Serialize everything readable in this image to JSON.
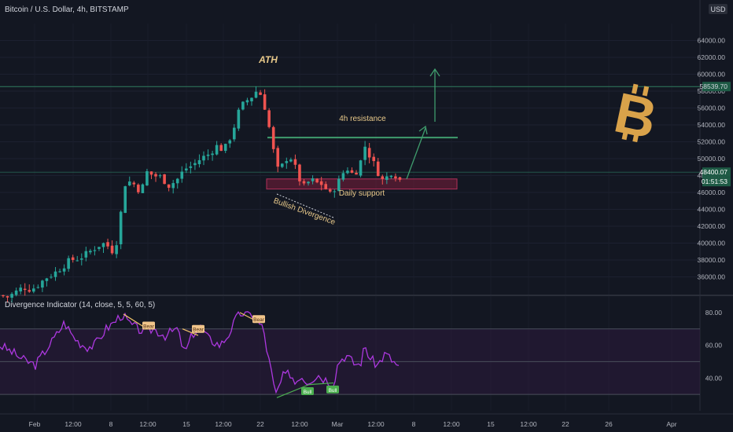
{
  "header": {
    "title": "Bitcoin / U.S. Dollar, 4h, BITSTAMP",
    "currency": "USD"
  },
  "indicator": {
    "title": "Divergence Indicator (14, close, 5, 5, 60, 5)"
  },
  "colors": {
    "background": "#131722",
    "up": "#26a69a",
    "down": "#ef5350",
    "rsi": "#ad38e0",
    "annotation": "#e8c98a",
    "level_line": "#2f7d5e",
    "support_zone": "#7a1d3a",
    "bitcoin": "#d9a24a"
  },
  "chart_data": [
    {
      "type": "candlestick",
      "symbol": "Bitcoin / U.S. Dollar",
      "timeframe": "4h",
      "exchange": "BITSTAMP",
      "ylim": [
        34000,
        66000
      ],
      "y_ticks": [
        "36000.00",
        "38000.00",
        "40000.00",
        "42000.00",
        "44000.00",
        "46000.00",
        "48000.00",
        "50000.00",
        "52000.00",
        "54000.00",
        "56000.00",
        "58000.00",
        "60000.00",
        "62000.00",
        "64000.00"
      ],
      "x_ticks": [
        "Feb",
        "12:00",
        "8",
        "12:00",
        "15",
        "12:00",
        "22",
        "12:00",
        "Mar",
        "12:00",
        "8",
        "12:00",
        "15",
        "12:00",
        "22",
        "26",
        "Apr"
      ],
      "price_labels": {
        "top_level": "58539.70",
        "current": "48400.07",
        "countdown": "01:51:53"
      },
      "levels": {
        "top_level": 58539.7,
        "resistance": 52500,
        "support_zone": [
          46400,
          47600
        ]
      },
      "path_closes": [
        [
          0,
          33800
        ],
        [
          10,
          33600
        ],
        [
          20,
          34200
        ],
        [
          30,
          34800
        ],
        [
          40,
          34500
        ],
        [
          50,
          35200
        ],
        [
          60,
          36000
        ],
        [
          70,
          36500
        ],
        [
          80,
          37300
        ],
        [
          90,
          38000
        ],
        [
          100,
          38200
        ],
        [
          110,
          38700
        ],
        [
          120,
          39400
        ],
        [
          130,
          40000
        ],
        [
          140,
          39500
        ],
        [
          145,
          38800
        ],
        [
          150,
          41000
        ],
        [
          155,
          44500
        ],
        [
          160,
          47500
        ],
        [
          170,
          47000
        ],
        [
          180,
          46000
        ],
        [
          185,
          48500
        ],
        [
          195,
          48000
        ],
        [
          205,
          47800
        ],
        [
          215,
          46800
        ],
        [
          225,
          47500
        ],
        [
          235,
          48800
        ],
        [
          245,
          49200
        ],
        [
          255,
          50000
        ],
        [
          265,
          50500
        ],
        [
          275,
          51500
        ],
        [
          285,
          51000
        ],
        [
          295,
          53000
        ],
        [
          305,
          56000
        ],
        [
          315,
          57000
        ],
        [
          322,
          57500
        ],
        [
          328,
          58300
        ],
        [
          334,
          57000
        ],
        [
          340,
          55000
        ],
        [
          345,
          52000
        ],
        [
          350,
          50000
        ],
        [
          355,
          48000
        ],
        [
          360,
          49500
        ],
        [
          368,
          50500
        ],
        [
          375,
          49000
        ],
        [
          385,
          46500
        ],
        [
          395,
          47500
        ],
        [
          405,
          47000
        ],
        [
          412,
          47000
        ],
        [
          418,
          45500
        ],
        [
          425,
          46500
        ],
        [
          432,
          47500
        ],
        [
          440,
          49000
        ],
        [
          450,
          48000
        ],
        [
          458,
          49500
        ],
        [
          464,
          51500
        ],
        [
          472,
          50000
        ],
        [
          480,
          48500
        ],
        [
          488,
          47200
        ],
        [
          496,
          48500
        ],
        [
          504,
          48000
        ],
        [
          510,
          47300
        ]
      ],
      "candle_count": 92,
      "annotations": [
        "ATH",
        "4h resistance",
        "Daily support",
        "Bullish Divergence"
      ]
    },
    {
      "type": "line",
      "name": "Divergence Indicator",
      "ylim": [
        20,
        90
      ],
      "y_ticks": [
        "40.00",
        "60.00",
        "80.00"
      ],
      "bands": [
        30,
        50,
        70
      ],
      "path_values": [
        [
          0,
          60
        ],
        [
          15,
          56
        ],
        [
          30,
          51
        ],
        [
          45,
          48
        ],
        [
          55,
          55
        ],
        [
          70,
          65
        ],
        [
          82,
          74
        ],
        [
          92,
          66
        ],
        [
          100,
          62
        ],
        [
          110,
          59
        ],
        [
          120,
          60
        ],
        [
          135,
          70
        ],
        [
          145,
          74
        ],
        [
          155,
          79
        ],
        [
          165,
          73
        ],
        [
          175,
          70
        ],
        [
          185,
          68
        ],
        [
          195,
          70
        ],
        [
          210,
          66
        ],
        [
          225,
          70
        ],
        [
          235,
          55
        ],
        [
          245,
          67
        ],
        [
          255,
          71
        ],
        [
          265,
          64
        ],
        [
          280,
          60
        ],
        [
          290,
          66
        ],
        [
          300,
          76
        ],
        [
          307,
          80
        ],
        [
          315,
          78
        ],
        [
          322,
          79
        ],
        [
          330,
          73
        ],
        [
          335,
          70
        ],
        [
          340,
          55
        ],
        [
          345,
          44
        ],
        [
          350,
          29
        ],
        [
          355,
          35
        ],
        [
          360,
          41
        ],
        [
          370,
          43
        ],
        [
          375,
          37
        ],
        [
          382,
          42
        ],
        [
          390,
          38
        ],
        [
          398,
          40
        ],
        [
          405,
          42
        ],
        [
          410,
          40
        ],
        [
          416,
          39
        ],
        [
          420,
          37
        ],
        [
          424,
          36
        ],
        [
          430,
          50
        ],
        [
          440,
          54
        ],
        [
          450,
          49
        ],
        [
          458,
          48
        ],
        [
          464,
          60
        ],
        [
          470,
          52
        ],
        [
          480,
          48
        ],
        [
          490,
          55
        ],
        [
          500,
          50
        ],
        [
          508,
          46
        ]
      ],
      "markers": [
        "Bear",
        "Bear",
        "Bear",
        "Bull",
        "Bull"
      ]
    }
  ]
}
